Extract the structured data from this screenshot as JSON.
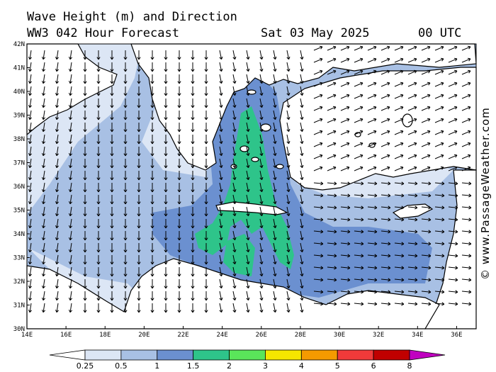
{
  "header": {
    "title": "Wave Height (m) and Direction",
    "model": "WW3 042 Hour Forecast",
    "date": "Sat 03 May 2025",
    "time": "00 UTC"
  },
  "map": {
    "region": "Eastern Mediterranean",
    "lon_range": [
      14,
      37
    ],
    "lat_range": [
      30,
      42
    ],
    "lon_ticks": [
      "14E",
      "16E",
      "18E",
      "20E",
      "22E",
      "24E",
      "26E",
      "28E",
      "30E",
      "32E",
      "34E",
      "36E"
    ],
    "lat_ticks": [
      "30N",
      "31N",
      "32N",
      "33N",
      "34N",
      "35N",
      "36N",
      "37N",
      "38N",
      "39N",
      "40N",
      "41N",
      "42N"
    ],
    "land_color": "#ffffff",
    "coast_color": "#000000"
  },
  "legend": {
    "labels": [
      "0.25",
      "0.5",
      "1",
      "1.5",
      "2",
      "3",
      "4",
      "5",
      "6",
      "8"
    ],
    "colors": [
      "#ffffff",
      "#dce6f5",
      "#a8c0e4",
      "#6b90d0",
      "#2ec48a",
      "#5ae55a",
      "#f5e600",
      "#f59a00",
      "#f03a3a",
      "#c00000",
      "#c000c0"
    ],
    "unit": "m"
  },
  "credit": "© www.PassageWeather.com"
}
